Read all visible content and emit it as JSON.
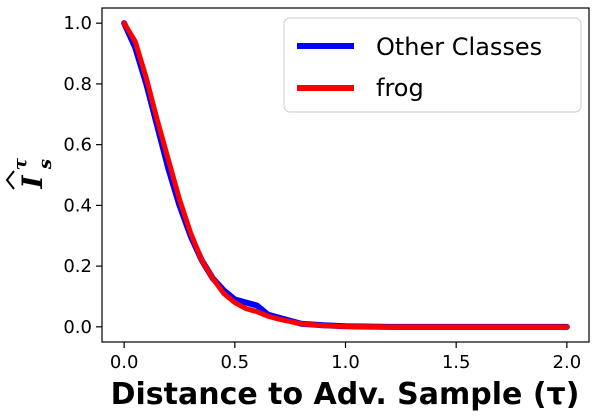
{
  "chart_data": {
    "type": "line",
    "title": "",
    "xlabel": "Distance to Adv. Sample (τ)",
    "ylabel_main": "I",
    "ylabel_sup": "τ",
    "ylabel_sub": "s",
    "xlim": [
      -0.1,
      2.1
    ],
    "ylim": [
      -0.05,
      1.05
    ],
    "xticks": [
      0.0,
      0.5,
      1.0,
      1.5,
      2.0
    ],
    "xtick_labels": [
      "0.0",
      "0.5",
      "1.0",
      "1.5",
      "2.0"
    ],
    "yticks": [
      0.0,
      0.2,
      0.4,
      0.6,
      0.8,
      1.0
    ],
    "ytick_labels": [
      "0.0",
      "0.2",
      "0.4",
      "0.6",
      "0.8",
      "1.0"
    ],
    "grid": false,
    "legend_position": "top-right",
    "series": [
      {
        "name": "Other Classes",
        "color": "#0000ff",
        "x": [
          0.0,
          0.05,
          0.1,
          0.15,
          0.2,
          0.25,
          0.3,
          0.35,
          0.4,
          0.45,
          0.5,
          0.55,
          0.6,
          0.65,
          0.7,
          0.8,
          0.9,
          1.0,
          1.2,
          1.5,
          2.0
        ],
        "y": [
          1.0,
          0.92,
          0.8,
          0.66,
          0.52,
          0.4,
          0.3,
          0.22,
          0.16,
          0.12,
          0.09,
          0.08,
          0.07,
          0.04,
          0.03,
          0.01,
          0.005,
          0.002,
          0.0,
          0.0,
          0.0
        ]
      },
      {
        "name": "frog",
        "color": "#ff0000",
        "x": [
          0.0,
          0.05,
          0.1,
          0.15,
          0.2,
          0.25,
          0.3,
          0.35,
          0.4,
          0.45,
          0.5,
          0.55,
          0.6,
          0.65,
          0.7,
          0.8,
          0.9,
          1.0,
          1.2,
          1.5,
          2.0
        ],
        "y": [
          1.0,
          0.94,
          0.82,
          0.68,
          0.55,
          0.42,
          0.31,
          0.22,
          0.16,
          0.11,
          0.08,
          0.06,
          0.05,
          0.035,
          0.025,
          0.01,
          0.004,
          0.001,
          0.0,
          0.0,
          0.0
        ]
      }
    ]
  }
}
